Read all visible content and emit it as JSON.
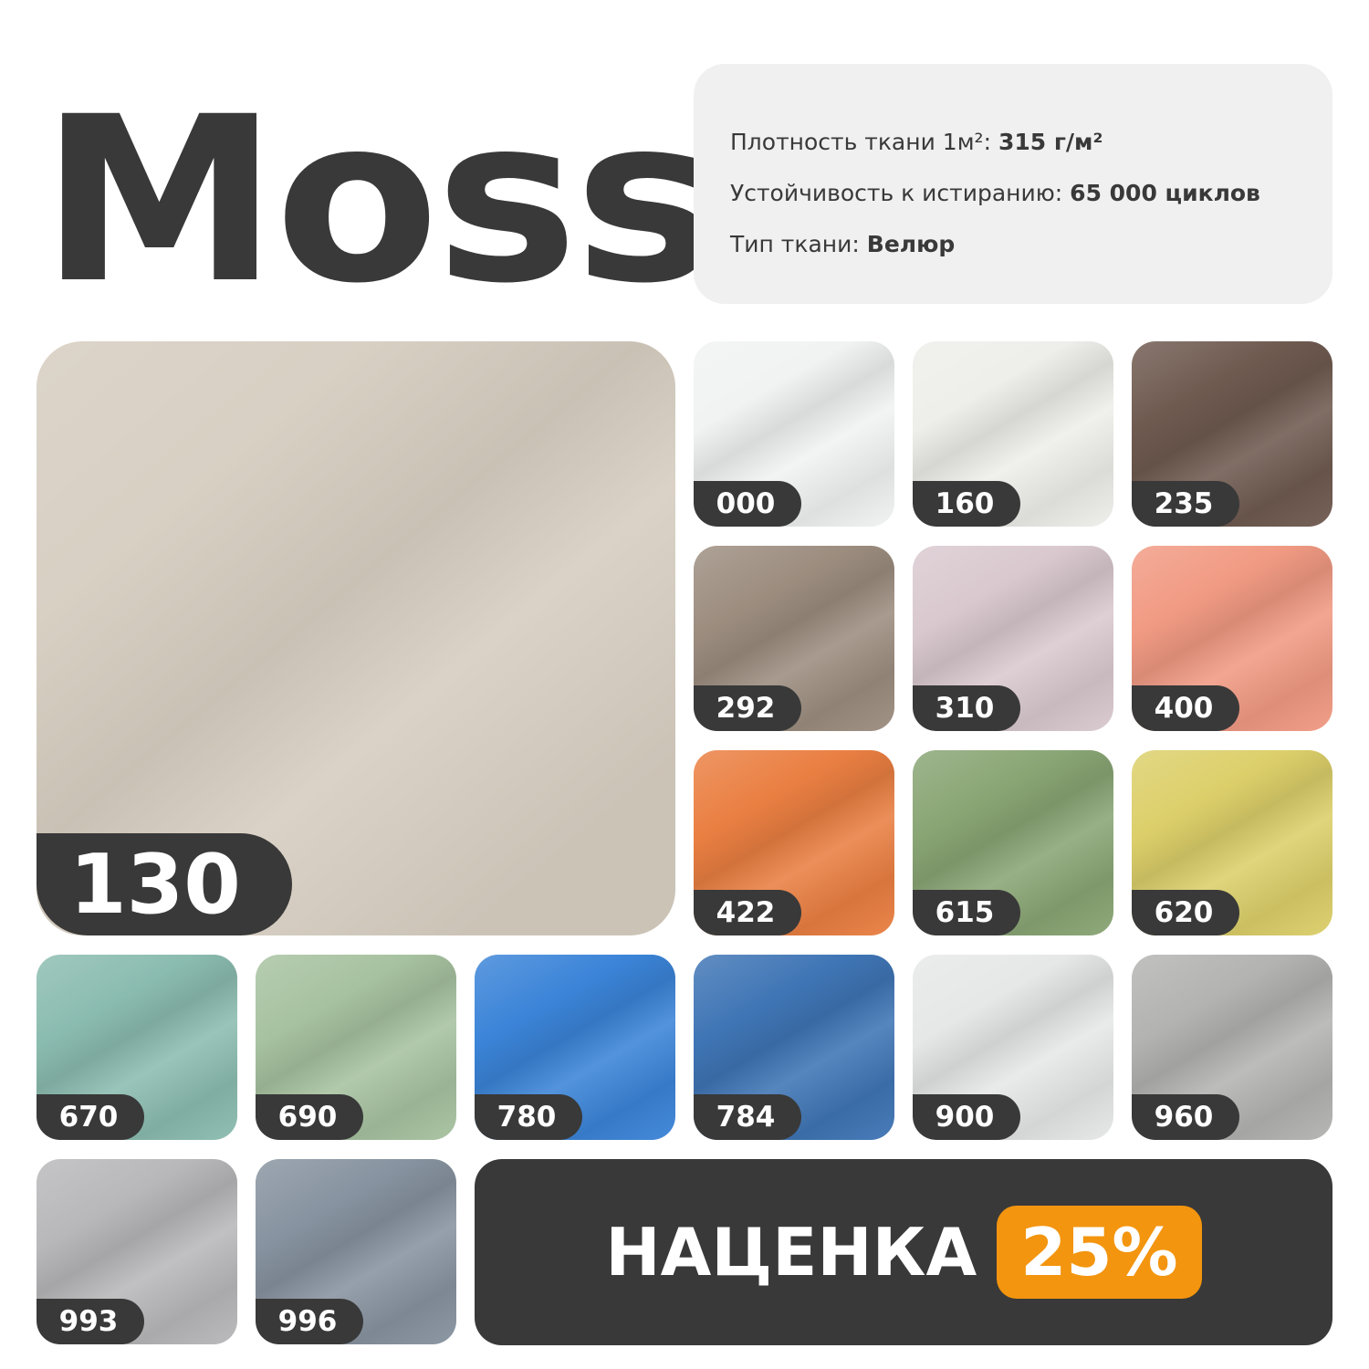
{
  "title": "Moss",
  "specs": [
    {
      "label": "Плотность ткани 1м²: ",
      "value": "315 г/м²"
    },
    {
      "label": "Устойчивость к истиранию: ",
      "value": "65 000 циклов"
    },
    {
      "label": "Тип ткани: ",
      "value": "Велюр"
    }
  ],
  "featured": {
    "code": "130",
    "color": "#d6cdc0"
  },
  "swatches": [
    {
      "code": "000",
      "color": "#f1f3f3"
    },
    {
      "code": "160",
      "color": "#eeeeea"
    },
    {
      "code": "235",
      "color": "#6f5a50"
    },
    {
      "code": "292",
      "color": "#9c8d7f"
    },
    {
      "code": "310",
      "color": "#d9c9cf"
    },
    {
      "code": "400",
      "color": "#f19a83"
    },
    {
      "code": "422",
      "color": "#ea7f42"
    },
    {
      "code": "615",
      "color": "#89a574"
    },
    {
      "code": "620",
      "color": "#dccf6a"
    },
    {
      "code": "670",
      "color": "#8bbcb0"
    },
    {
      "code": "690",
      "color": "#a7c2a0"
    },
    {
      "code": "780",
      "color": "#3b84d8"
    },
    {
      "code": "784",
      "color": "#3f75b5"
    },
    {
      "code": "900",
      "color": "#e6e8e8"
    },
    {
      "code": "960",
      "color": "#b3b3b1"
    },
    {
      "code": "993",
      "color": "#b8b8ba"
    },
    {
      "code": "996",
      "color": "#8793a0"
    }
  ],
  "banner": {
    "label": "НАЦЕНКА",
    "percent": "25%",
    "accent": "#f3950f"
  }
}
